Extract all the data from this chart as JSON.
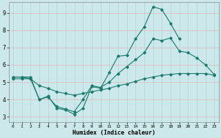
{
  "xlabel": "Humidex (Indice chaleur)",
  "bg_color": "#cce8ea",
  "grid_color_h": "#e8b4b4",
  "grid_color_v": "#a8d4d6",
  "line_color": "#1a7a6e",
  "xlim": [
    -0.5,
    23.5
  ],
  "ylim": [
    2.7,
    9.6
  ],
  "xticks": [
    0,
    1,
    2,
    3,
    4,
    5,
    6,
    7,
    8,
    9,
    10,
    11,
    12,
    13,
    14,
    15,
    16,
    17,
    18,
    19,
    20,
    21,
    22,
    23
  ],
  "yticks": [
    3,
    4,
    5,
    6,
    7,
    8,
    9
  ],
  "line1_x": [
    0,
    1,
    2,
    3,
    4,
    5,
    6,
    7,
    8,
    9,
    10,
    11,
    12,
    13,
    14,
    15,
    16,
    17,
    18,
    19,
    20
  ],
  "line1_y": [
    5.3,
    5.3,
    5.3,
    4.0,
    4.2,
    3.5,
    3.4,
    3.15,
    3.5,
    4.75,
    4.65,
    5.55,
    6.5,
    6.55,
    7.5,
    8.2,
    9.35,
    9.2,
    8.4,
    7.5,
    null
  ],
  "line2_x": [
    0,
    1,
    2,
    3,
    4,
    5,
    6,
    7,
    8,
    9,
    10,
    11,
    12,
    13,
    14,
    15,
    16,
    17,
    18,
    19,
    20,
    21,
    22,
    23
  ],
  "line2_y": [
    5.3,
    5.3,
    5.2,
    4.0,
    4.15,
    3.6,
    3.45,
    3.3,
    4.0,
    4.8,
    4.7,
    5.0,
    5.5,
    5.9,
    6.3,
    6.7,
    7.5,
    7.4,
    7.55,
    6.8,
    6.7,
    6.4,
    6.0,
    5.45
  ],
  "line3_x": [
    0,
    1,
    2,
    3,
    4,
    5,
    6,
    7,
    8,
    9,
    10,
    11,
    12,
    13,
    14,
    15,
    16,
    17,
    18,
    19,
    20,
    21,
    22,
    23
  ],
  "line3_y": [
    5.2,
    5.2,
    5.2,
    4.8,
    4.65,
    4.45,
    4.35,
    4.25,
    4.35,
    4.45,
    4.55,
    4.65,
    4.8,
    4.9,
    5.05,
    5.2,
    5.3,
    5.4,
    5.45,
    5.5,
    5.5,
    5.5,
    5.5,
    5.4
  ]
}
